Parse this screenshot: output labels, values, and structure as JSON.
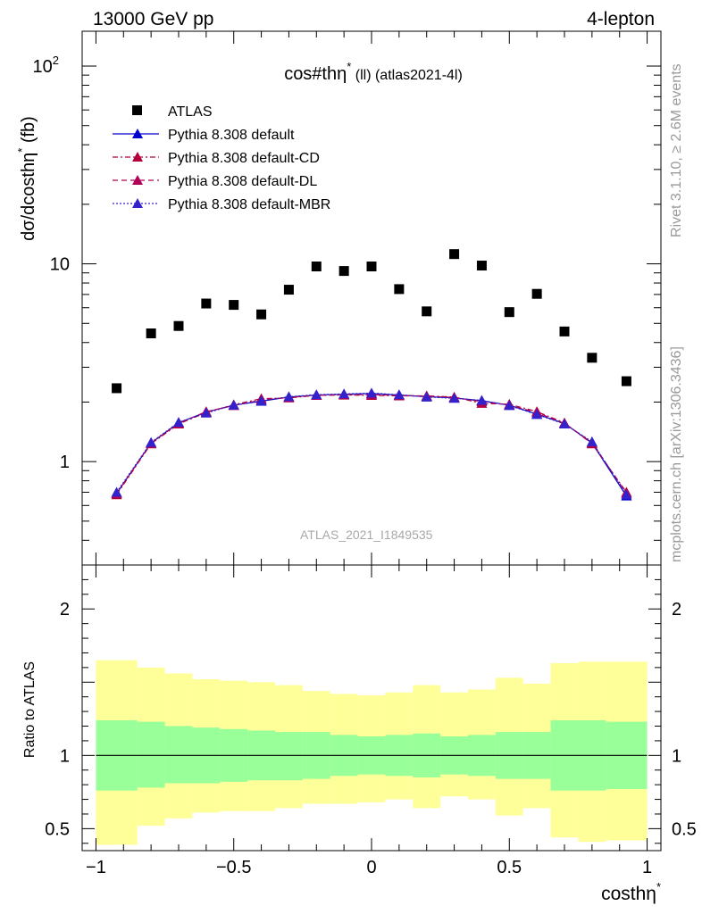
{
  "header": {
    "energy": "13000 GeV pp",
    "channel": "4-lepton"
  },
  "side": {
    "rivet": "Rivet 3.1.10, ≥ 2.6M events",
    "mcplots": "mcplots.cern.ch [arXiv:1306.3436]"
  },
  "chart_data": [
    {
      "type": "scatter",
      "title": "cos#thη* (ll) (atlas2021-4l)",
      "title_main": "cos#thη",
      "title_sup": "*",
      "title_rest": " (ll) (atlas2021-4l)",
      "ylabel": "dσ/dcosthη* (fb)",
      "ylabel_main": "dσ/dcosthη",
      "ylabel_sup": "*",
      "ylabel_unit": " (fb)",
      "xlim": [
        -1.05,
        1.05
      ],
      "ylim": [
        0.3,
        150
      ],
      "yscale": "log",
      "yticks": [
        {
          "v": 1,
          "label": "1"
        },
        {
          "v": 10,
          "label": "10"
        },
        {
          "v": 100,
          "label": "10",
          "sup": "2"
        }
      ],
      "watermark": "ATLAS_2021_I1849535",
      "legend": {
        "placement": "top-left"
      },
      "series": [
        {
          "name": "ATLAS",
          "marker": "square",
          "color": "#000000",
          "x": [
            -0.925,
            -0.8,
            -0.7,
            -0.6,
            -0.5,
            -0.4,
            -0.3,
            -0.2,
            -0.1,
            0.0,
            0.1,
            0.2,
            0.3,
            0.4,
            0.5,
            0.6,
            0.7,
            0.8,
            0.925
          ],
          "y": [
            2.35,
            4.45,
            4.85,
            6.3,
            6.2,
            5.55,
            7.4,
            9.7,
            9.2,
            9.7,
            7.45,
            5.75,
            11.2,
            9.8,
            5.7,
            7.05,
            4.55,
            3.35,
            2.55
          ]
        },
        {
          "name": "Pythia 8.308 default",
          "marker": "triangle",
          "color": "#0000cc",
          "dash": "",
          "x": [
            -0.925,
            -0.8,
            -0.7,
            -0.6,
            -0.5,
            -0.4,
            -0.3,
            -0.2,
            -0.1,
            0.0,
            0.1,
            0.2,
            0.3,
            0.4,
            0.5,
            0.6,
            0.7,
            0.8,
            0.925
          ],
          "y": [
            0.69,
            1.24,
            1.57,
            1.78,
            1.93,
            2.02,
            2.12,
            2.17,
            2.19,
            2.21,
            2.17,
            2.13,
            2.1,
            2.03,
            1.93,
            1.74,
            1.56,
            1.24,
            0.67
          ]
        },
        {
          "name": "Pythia 8.308 default-CD",
          "marker": "triangle",
          "color": "#b0003a",
          "dash": "6,3,2,3",
          "x": [
            -0.925,
            -0.8,
            -0.7,
            -0.6,
            -0.5,
            -0.4,
            -0.3,
            -0.2,
            -0.1,
            0.0,
            0.1,
            0.2,
            0.3,
            0.4,
            0.5,
            0.6,
            0.7,
            0.8,
            0.925
          ],
          "y": [
            0.68,
            1.23,
            1.55,
            1.77,
            1.94,
            2.08,
            2.1,
            2.16,
            2.17,
            2.16,
            2.15,
            2.15,
            2.12,
            1.97,
            1.95,
            1.79,
            1.57,
            1.23,
            0.7
          ]
        },
        {
          "name": "Pythia 8.308 default-DL",
          "marker": "triangle",
          "color": "#b0005a",
          "dash": "6,4",
          "x": [
            -0.925,
            -0.8,
            -0.7,
            -0.6,
            -0.5,
            -0.4,
            -0.3,
            -0.2,
            -0.1,
            0.0,
            0.1,
            0.2,
            0.3,
            0.4,
            0.5,
            0.6,
            0.7,
            0.8,
            0.925
          ],
          "y": [
            0.69,
            1.24,
            1.56,
            1.79,
            1.92,
            2.05,
            2.11,
            2.16,
            2.18,
            2.18,
            2.16,
            2.14,
            2.11,
            2.01,
            1.93,
            1.77,
            1.56,
            1.25,
            0.69
          ]
        },
        {
          "name": "Pythia 8.308 default-MBR",
          "marker": "triangle",
          "color": "#3322cc",
          "dash": "2,2",
          "x": [
            -0.925,
            -0.8,
            -0.7,
            -0.6,
            -0.5,
            -0.4,
            -0.3,
            -0.2,
            -0.1,
            0.0,
            0.1,
            0.2,
            0.3,
            0.4,
            0.5,
            0.6,
            0.7,
            0.8,
            0.925
          ],
          "y": [
            0.7,
            1.25,
            1.58,
            1.76,
            1.93,
            2.03,
            2.13,
            2.18,
            2.2,
            2.22,
            2.18,
            2.12,
            2.09,
            2.04,
            1.92,
            1.73,
            1.55,
            1.26,
            0.68
          ]
        }
      ]
    },
    {
      "type": "area",
      "ylabel": "Ratio to ATLAS",
      "xlabel": "costhη*",
      "xlabel_main": "costhη",
      "xlabel_sup": "*",
      "xlim": [
        -1.05,
        1.05
      ],
      "ylim": [
        0.35,
        2.3
      ],
      "xticks": [
        {
          "v": -1,
          "label": "−1"
        },
        {
          "v": -0.5,
          "label": "−0.5"
        },
        {
          "v": 0,
          "label": "0"
        },
        {
          "v": 0.5,
          "label": "0.5"
        },
        {
          "v": 1,
          "label": "1"
        }
      ],
      "yticks": [
        {
          "v": 0.5,
          "label": "0.5"
        },
        {
          "v": 1,
          "label": "1"
        },
        {
          "v": 2,
          "label": "2"
        }
      ],
      "reference": 1,
      "bin_edges": [
        -1.0,
        -0.85,
        -0.75,
        -0.65,
        -0.55,
        -0.45,
        -0.35,
        -0.25,
        -0.15,
        -0.05,
        0.05,
        0.15,
        0.25,
        0.35,
        0.45,
        0.55,
        0.65,
        0.75,
        0.85,
        1.0
      ],
      "band_stat_colour": "#99ff99",
      "band_total_colour": "#ffff99",
      "stat_band": {
        "low": [
          0.76,
          0.78,
          0.81,
          0.81,
          0.82,
          0.83,
          0.83,
          0.84,
          0.86,
          0.87,
          0.86,
          0.85,
          0.87,
          0.86,
          0.84,
          0.84,
          0.76,
          0.76,
          0.77
        ],
        "high": [
          1.24,
          1.23,
          1.2,
          1.19,
          1.18,
          1.17,
          1.16,
          1.16,
          1.14,
          1.13,
          1.14,
          1.15,
          1.13,
          1.14,
          1.16,
          1.16,
          1.24,
          1.24,
          1.23
        ]
      },
      "total_band": {
        "low": [
          0.39,
          0.52,
          0.57,
          0.61,
          0.62,
          0.62,
          0.64,
          0.67,
          0.67,
          0.68,
          0.7,
          0.64,
          0.72,
          0.7,
          0.59,
          0.64,
          0.44,
          0.41,
          0.42
        ],
        "high": [
          1.65,
          1.6,
          1.56,
          1.52,
          1.51,
          1.5,
          1.48,
          1.44,
          1.42,
          1.41,
          1.43,
          1.48,
          1.43,
          1.45,
          1.53,
          1.49,
          1.63,
          1.64,
          1.64
        ]
      }
    }
  ]
}
